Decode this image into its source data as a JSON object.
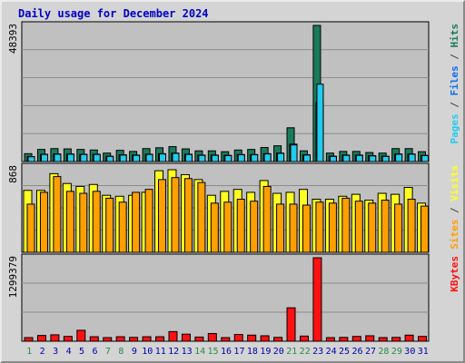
{
  "chart_data": {
    "type": "bar",
    "title": "Daily usage for December 2024",
    "x": [
      "1",
      "2",
      "3",
      "4",
      "5",
      "6",
      "7",
      "8",
      "9",
      "10",
      "11",
      "12",
      "13",
      "14",
      "15",
      "16",
      "17",
      "18",
      "19",
      "20",
      "21",
      "22",
      "23",
      "24",
      "25",
      "26",
      "27",
      "28",
      "29",
      "30",
      "31"
    ],
    "weekend_days": [
      "1",
      "7",
      "8",
      "14",
      "15",
      "21",
      "22",
      "28",
      "29"
    ],
    "grid": true,
    "colors": {
      "hits": "#1b7a5a",
      "files": "#0a6ff0",
      "pages": "#22ccee",
      "visits": "#ffff22",
      "sites": "#ff9f00",
      "kbytes": "#ff1111",
      "day_label": "#0000aa",
      "weekend_label": "#2a8a4a",
      "title": "#0000c8",
      "plot_bg": "#c0c0c0",
      "grid": "#8c8c8c"
    },
    "panels": [
      {
        "id": "top",
        "max_label": "48393",
        "ymax": 48393,
        "axis_title": [
          {
            "text": "Pages",
            "color": "#22ccee"
          },
          {
            "text": " / ",
            "color": "#444444"
          },
          {
            "text": "Files",
            "color": "#0a6ff0"
          },
          {
            "text": " / ",
            "color": "#444444"
          },
          {
            "text": "Hits",
            "color": "#1b7a5a"
          }
        ],
        "series": [
          {
            "name": "Hits",
            "color_key": "hits",
            "values": [
              2800,
              4300,
              4600,
              4500,
              4300,
              4100,
              3000,
              4000,
              3600,
              4600,
              4900,
              5300,
              4500,
              3800,
              3800,
              3500,
              4100,
              4300,
              5000,
              5600,
              12000,
              3800,
              48393,
              3000,
              3600,
              3600,
              3200,
              3000,
              4600,
              4600,
              3500
            ]
          },
          {
            "name": "Files",
            "color_key": "files",
            "values": [
              1800,
              2600,
              2700,
              2700,
              2600,
              2600,
              1900,
              2400,
              2300,
              2600,
              2800,
              3000,
              2600,
              2300,
              2300,
              2200,
              2500,
              2500,
              2800,
              3000,
              6200,
              2400,
              21000,
              1900,
              2300,
              2300,
              2100,
              1900,
              2700,
              2700,
              2200
            ]
          },
          {
            "name": "Pages",
            "color_key": "pages",
            "values": [
              1700,
              2500,
              2600,
              2600,
              2500,
              2500,
              1800,
              2300,
              2200,
              2500,
              2700,
              2900,
              2500,
              2200,
              2200,
              2100,
              2400,
              2400,
              2700,
              2900,
              5900,
              2300,
              27500,
              1800,
              2200,
              2200,
              2000,
              1800,
              2600,
              2600,
              2100
            ]
          }
        ]
      },
      {
        "id": "middle",
        "max_label": "868",
        "ymax": 868,
        "axis_title": [
          {
            "text": "Sites",
            "color": "#ff9f00"
          },
          {
            "text": " / ",
            "color": "#444444"
          },
          {
            "text": "Visits",
            "color": "#ffff22"
          }
        ],
        "series": [
          {
            "name": "Visits",
            "color_key": "visits",
            "values": [
              630,
              630,
              800,
              700,
              670,
              690,
              580,
              570,
              580,
              610,
              830,
              840,
              790,
              740,
              580,
              620,
              640,
              610,
              730,
              600,
              610,
              640,
              540,
              540,
              570,
              590,
              530,
              600,
              590,
              660,
              500
            ]
          },
          {
            "name": "Sites",
            "color_key": "sites",
            "values": [
              490,
              610,
              770,
              620,
              600,
              620,
              550,
              510,
              610,
              640,
              740,
              760,
              750,
              710,
              500,
              510,
              540,
              520,
              670,
              490,
              490,
              480,
              510,
              500,
              550,
              520,
              500,
              530,
              490,
              540,
              470
            ]
          }
        ]
      },
      {
        "id": "bottom",
        "max_label": "1299379",
        "ymax": 1299379,
        "axis_title": [
          {
            "text": "KBytes",
            "color": "#ff1111"
          }
        ],
        "series": [
          {
            "name": "KBytes",
            "color_key": "kbytes",
            "values": [
              55000,
              90000,
              100000,
              75000,
              170000,
              70000,
              35000,
              70000,
              60000,
              70000,
              70000,
              150000,
              110000,
              65000,
              120000,
              55000,
              105000,
              95000,
              85000,
              60000,
              520000,
              80000,
              1299379,
              55000,
              60000,
              75000,
              85000,
              55000,
              60000,
              95000,
              75000
            ]
          }
        ]
      }
    ]
  }
}
